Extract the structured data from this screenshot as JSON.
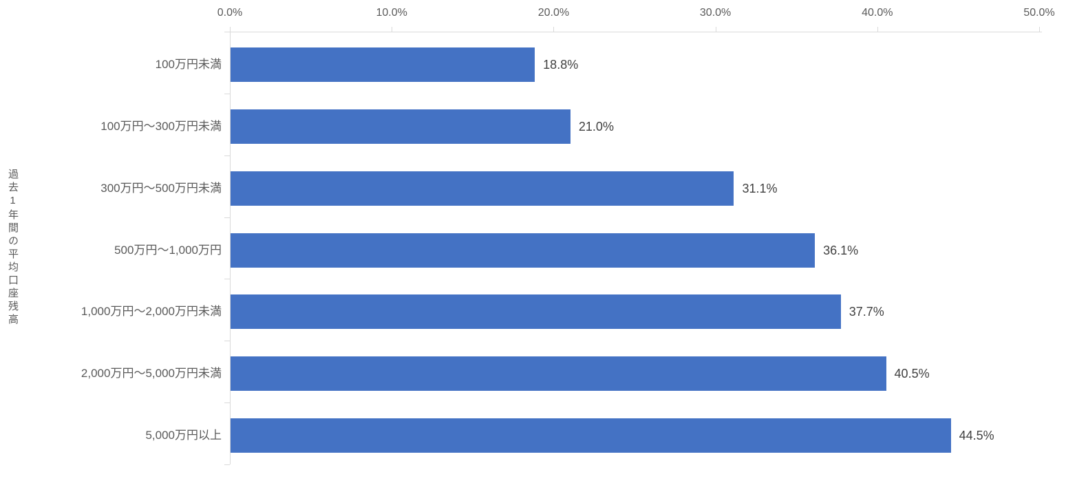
{
  "chart_data": {
    "type": "bar",
    "orientation": "horizontal",
    "title": "",
    "xlabel": "",
    "ylabel": "過去1年間の平均口座残高",
    "categories": [
      "100万円未満",
      "100万円～300万円未満",
      "300万円～500万円未満",
      "500万円～1,000万円",
      "1,000万円～2,000万円未満",
      "2,000万円～5,000万円未満",
      "5,000万円以上"
    ],
    "values": [
      18.8,
      21.0,
      31.1,
      36.1,
      37.7,
      40.5,
      44.5
    ],
    "data_labels": [
      "18.8%",
      "21.0%",
      "31.1%",
      "36.1%",
      "37.7%",
      "40.5%",
      "44.5%"
    ],
    "xlim": [
      0,
      50
    ],
    "x_ticks": [
      {
        "value": 0,
        "label": "0.0%"
      },
      {
        "value": 10,
        "label": "10.0%"
      },
      {
        "value": 20,
        "label": "20.0%"
      },
      {
        "value": 30,
        "label": "30.0%"
      },
      {
        "value": 40,
        "label": "40.0%"
      },
      {
        "value": 50,
        "label": "50.0%"
      }
    ],
    "grid": false,
    "legend_position": "none",
    "colors": {
      "bar": "#4472C4",
      "axis_line": "#D9D9D9",
      "tick_label": "#595959",
      "category_label": "#595959",
      "data_label": "#404040"
    }
  }
}
